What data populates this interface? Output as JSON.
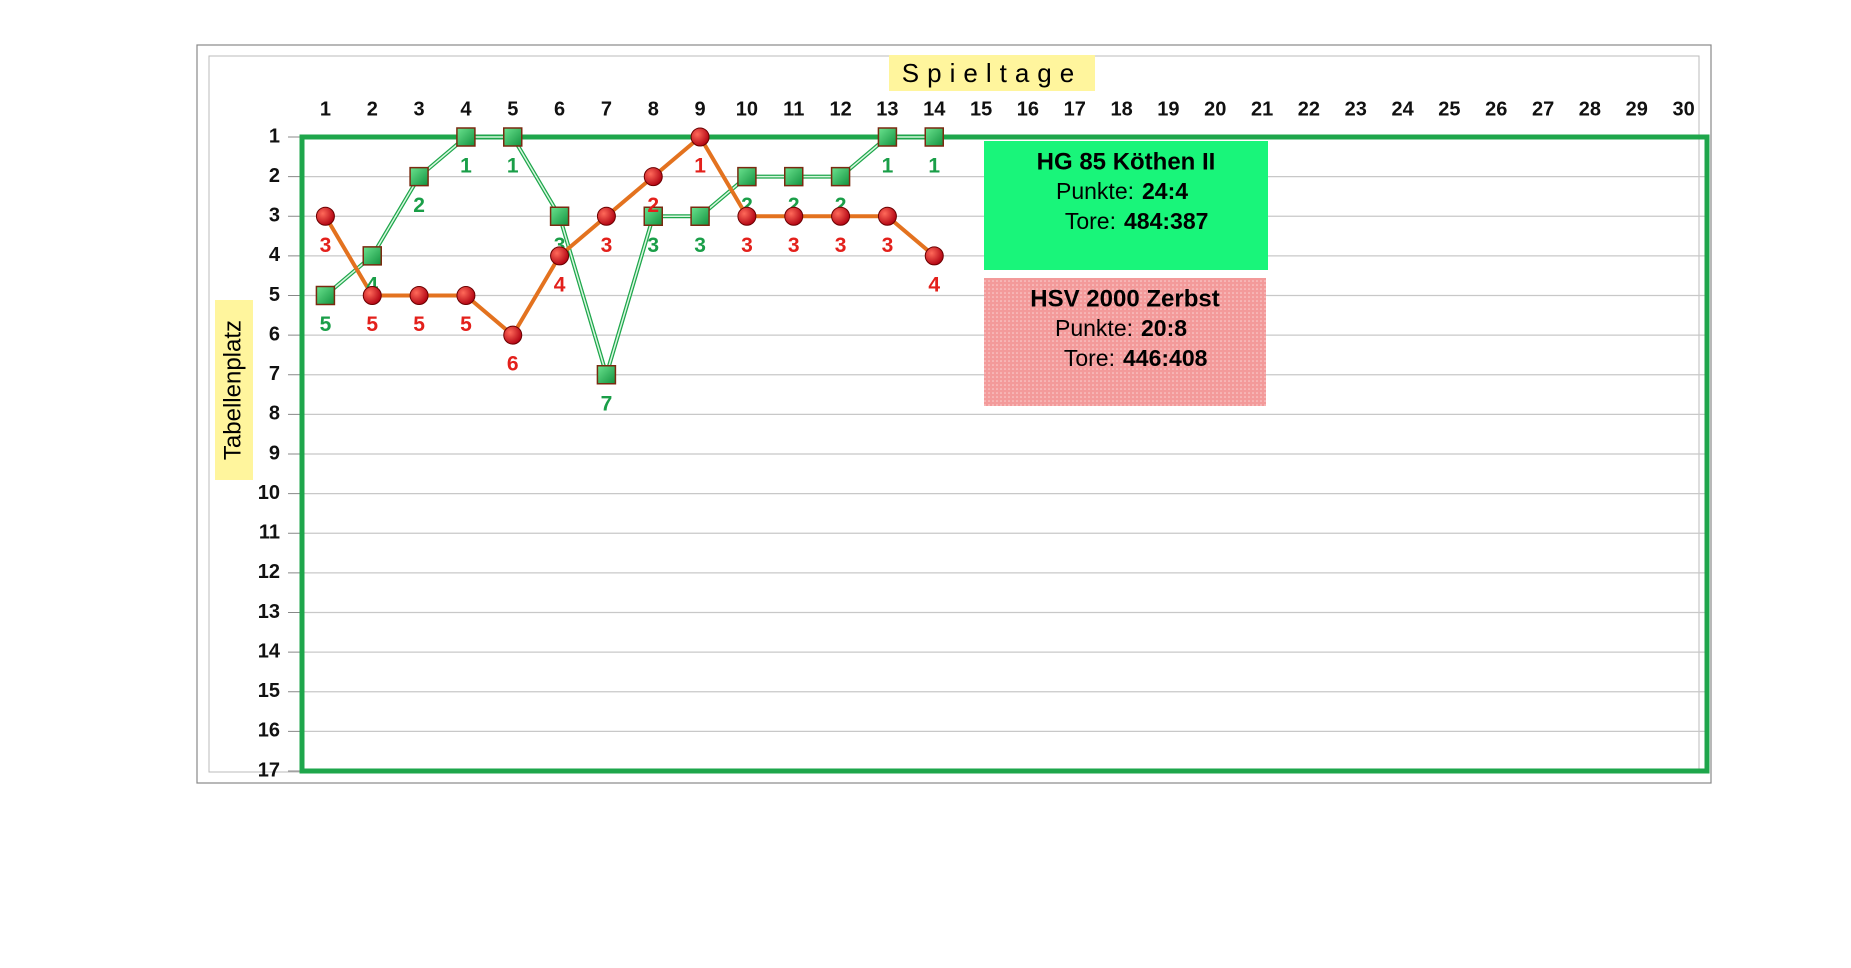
{
  "chart_data": {
    "type": "line",
    "x_label": "Spieltage",
    "y_label": "Tabellenplatz",
    "x": [
      1,
      2,
      3,
      4,
      5,
      6,
      7,
      8,
      9,
      10,
      11,
      12,
      13,
      14,
      15,
      16,
      17,
      18,
      19,
      20,
      21,
      22,
      23,
      24,
      25,
      26,
      27,
      28,
      29,
      30
    ],
    "xlim": [
      0.5,
      30.5
    ],
    "ylim": [
      1,
      17
    ],
    "y_inverted": true,
    "yticks": [
      1,
      2,
      3,
      4,
      5,
      6,
      7,
      8,
      9,
      10,
      11,
      12,
      13,
      14,
      15,
      16,
      17
    ],
    "grid": true,
    "info_labels": [
      "Punkte:",
      "Tore:"
    ],
    "series": [
      {
        "name": "HG 85 Köthen II",
        "color": "#1ea64b",
        "marker": "square",
        "marker_color": "#1fae52",
        "label_color": "#1a9e48",
        "box_color": "#19f57a",
        "points": "24:4",
        "goals": "484:387",
        "values": [
          5,
          4,
          2,
          1,
          1,
          3,
          7,
          3,
          3,
          2,
          2,
          2,
          1,
          1,
          null,
          null,
          null,
          null,
          null,
          null,
          null,
          null,
          null,
          null,
          null,
          null,
          null,
          null,
          null,
          null
        ]
      },
      {
        "name": "HSV 2000 Zerbst",
        "color": "#e3721f",
        "marker": "circle",
        "marker_color": "#d8141b",
        "label_color": "#e3201b",
        "box_color": "#f39a9a",
        "points": "20:8",
        "goals": "446:408",
        "values": [
          3,
          5,
          5,
          5,
          6,
          4,
          3,
          2,
          1,
          3,
          3,
          3,
          3,
          4,
          null,
          null,
          null,
          null,
          null,
          null,
          null,
          null,
          null,
          null,
          null,
          null,
          null,
          null,
          null,
          null
        ]
      }
    ]
  }
}
